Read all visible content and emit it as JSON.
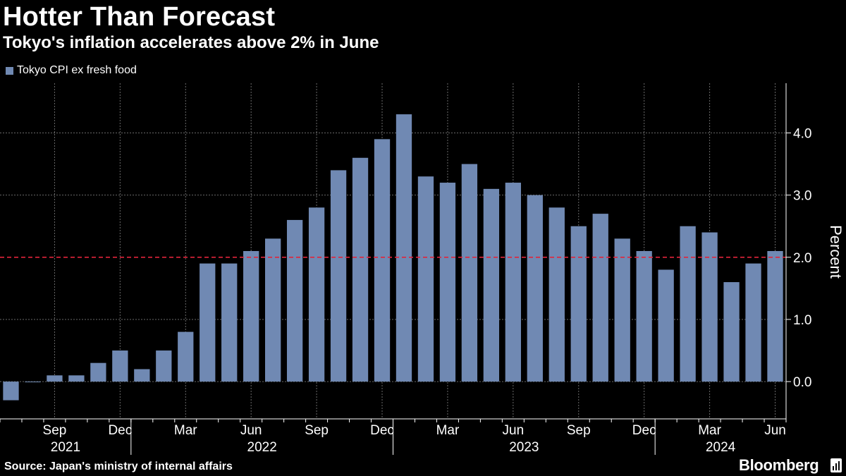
{
  "title": "Hotter Than Forecast",
  "subtitle": "Tokyo's inflation accelerates above 2% in June",
  "source": "Source: Japan's ministry of internal affairs",
  "brand": "Bloomberg",
  "colors": {
    "background": "#000000",
    "bar": "#7089b3",
    "reference_line": "#e0243b",
    "grid": "#6a6a6a",
    "text": "#ffffff"
  },
  "chart_data": {
    "type": "bar",
    "legend": [
      "Tokyo CPI ex fresh food"
    ],
    "legend_placement": "top-left",
    "ylabel": "Percent",
    "ylim": [
      -0.6,
      4.8
    ],
    "yticks": [
      "0.0",
      "1.0",
      "2.0",
      "3.0",
      "4.0"
    ],
    "reference_line": 2.0,
    "grid": true,
    "y_axis_side": "right",
    "categories": [
      "2021-07",
      "2021-08",
      "2021-09",
      "2021-10",
      "2021-11",
      "2021-12",
      "2022-01",
      "2022-02",
      "2022-03",
      "2022-04",
      "2022-05",
      "2022-06",
      "2022-07",
      "2022-08",
      "2022-09",
      "2022-10",
      "2022-11",
      "2022-12",
      "2023-01",
      "2023-02",
      "2023-03",
      "2023-04",
      "2023-05",
      "2023-06",
      "2023-07",
      "2023-08",
      "2023-09",
      "2023-10",
      "2023-11",
      "2023-12",
      "2024-01",
      "2024-02",
      "2024-03",
      "2024-04",
      "2024-05",
      "2024-06"
    ],
    "series": [
      {
        "name": "Tokyo CPI ex fresh food",
        "values": [
          -0.3,
          0.0,
          0.1,
          0.1,
          0.3,
          0.5,
          0.2,
          0.5,
          0.8,
          1.9,
          1.9,
          2.1,
          2.3,
          2.6,
          2.8,
          3.4,
          3.6,
          3.9,
          4.3,
          3.3,
          3.2,
          3.5,
          3.1,
          3.2,
          3.0,
          2.8,
          2.5,
          2.7,
          2.3,
          2.1,
          1.8,
          2.5,
          2.4,
          1.6,
          1.9,
          2.1
        ]
      }
    ],
    "x_month_labels": [
      {
        "index": 2,
        "label": "Sep"
      },
      {
        "index": 5,
        "label": "Dec"
      },
      {
        "index": 8,
        "label": "Mar"
      },
      {
        "index": 11,
        "label": "Jun"
      },
      {
        "index": 14,
        "label": "Sep"
      },
      {
        "index": 17,
        "label": "Dec"
      },
      {
        "index": 20,
        "label": "Mar"
      },
      {
        "index": 23,
        "label": "Jun"
      },
      {
        "index": 26,
        "label": "Sep"
      },
      {
        "index": 29,
        "label": "Dec"
      },
      {
        "index": 32,
        "label": "Mar"
      },
      {
        "index": 35,
        "label": "Jun"
      }
    ],
    "x_year_labels": [
      {
        "label": "2021",
        "from": 0,
        "to": 5
      },
      {
        "label": "2022",
        "from": 6,
        "to": 17
      },
      {
        "label": "2023",
        "from": 18,
        "to": 29
      },
      {
        "label": "2024",
        "from": 30,
        "to": 35
      }
    ]
  }
}
